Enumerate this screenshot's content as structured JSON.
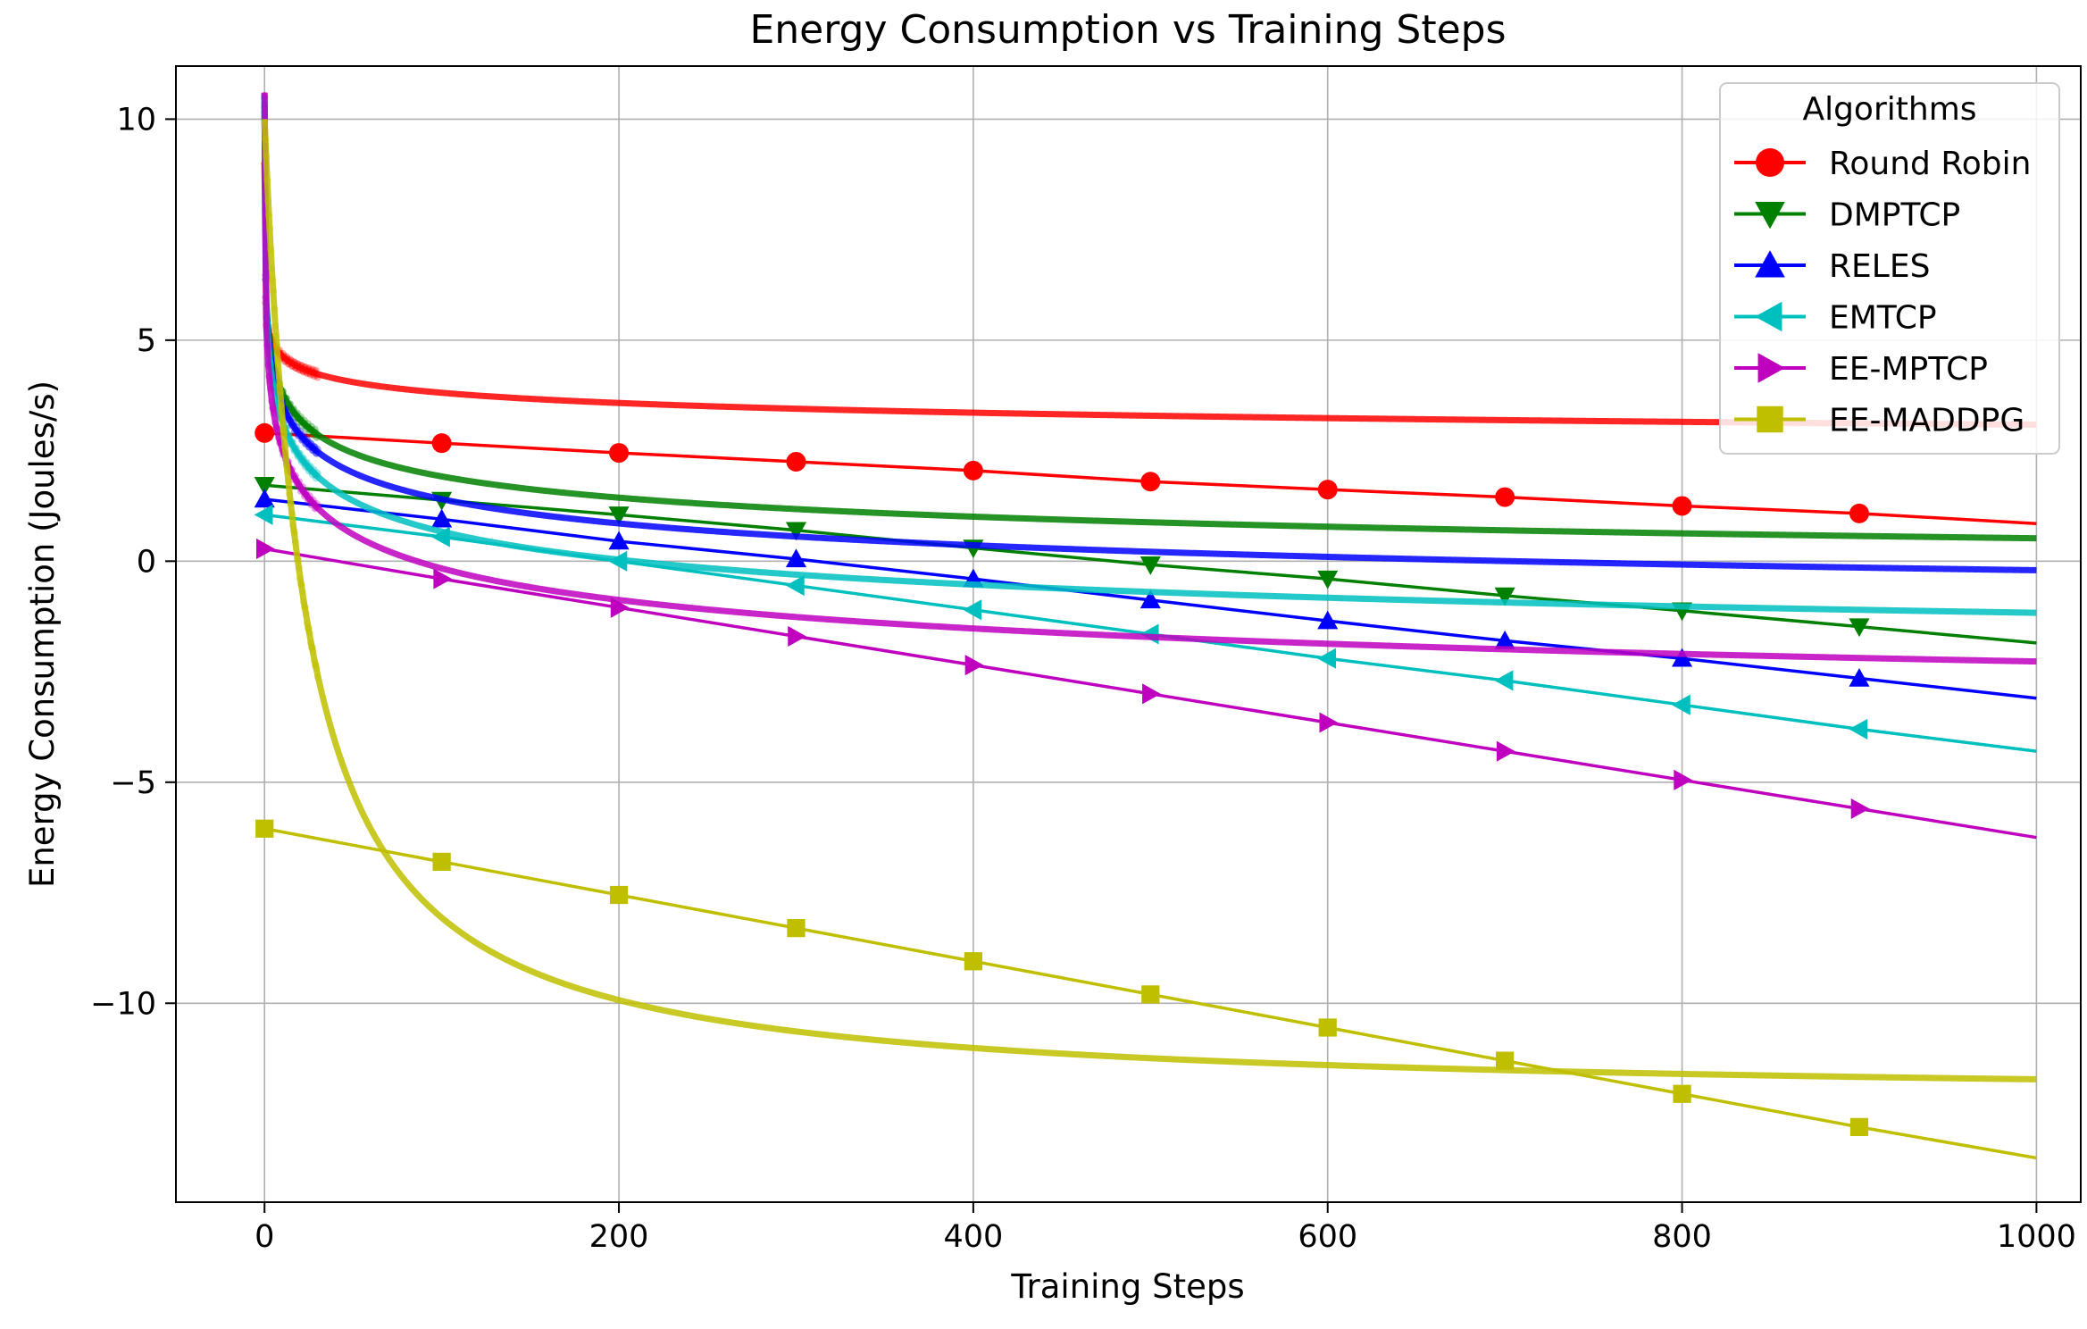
{
  "chart_data": {
    "type": "line",
    "title": "Energy Consumption vs Training Steps",
    "xlabel": "Training Steps",
    "ylabel": "Energy Consumption (Joules/s)",
    "xlim": [
      -50,
      1025
    ],
    "ylim": [
      -14.5,
      11.2
    ],
    "xticks": [
      0,
      200,
      400,
      600,
      800,
      1000
    ],
    "yticks": [
      -10,
      -5,
      0,
      5,
      10
    ],
    "xtick_labels": [
      "0",
      "200",
      "400",
      "600",
      "800",
      "1000"
    ],
    "ytick_labels": [
      "−10",
      "−5",
      "0",
      "5",
      "10"
    ],
    "grid": true,
    "legend": {
      "title": "Algorithms",
      "position": "top-right"
    },
    "trend_x": [
      0,
      100,
      200,
      300,
      400,
      500,
      600,
      700,
      800,
      900,
      1000
    ],
    "series": [
      {
        "name": "Round Robin",
        "color": "#ff0000",
        "marker": "circle",
        "trend": [
          2.9,
          2.67,
          2.45,
          2.25,
          2.05,
          1.8,
          1.62,
          1.45,
          1.25,
          1.08,
          0.85
        ],
        "fit": {
          "a": 9.0,
          "b": 3.28,
          "c": 5.2,
          "d": 1.12
        }
      },
      {
        "name": "DMPTCP",
        "color": "#008000",
        "marker": "triangle-down",
        "trend": [
          1.72,
          1.38,
          1.05,
          0.7,
          0.3,
          -0.08,
          -0.4,
          -0.78,
          -1.12,
          -1.48,
          -1.85
        ],
        "fit": {
          "a": 10.2,
          "b": 5.0,
          "c": 3.2,
          "d": -1.33
        }
      },
      {
        "name": "RELES",
        "color": "#0000ff",
        "marker": "triangle-up",
        "trend": [
          1.4,
          0.95,
          0.45,
          0.05,
          -0.4,
          -0.88,
          -1.35,
          -1.8,
          -2.2,
          -2.65,
          -3.1
        ],
        "fit": {
          "a": 10.4,
          "b": 6.2,
          "c": 3.2,
          "d": -2.37
        }
      },
      {
        "name": "EMTCP",
        "color": "#00bfbf",
        "marker": "triangle-left",
        "trend": [
          1.05,
          0.55,
          0.0,
          -0.55,
          -1.1,
          -1.65,
          -2.2,
          -2.7,
          -3.25,
          -3.8,
          -4.3
        ],
        "fit": {
          "a": 10.5,
          "b": 7.2,
          "c": 3.0,
          "d": -3.42
        }
      },
      {
        "name": "EE-MPTCP",
        "color": "#bf00bf",
        "marker": "triangle-right",
        "trend": [
          0.28,
          -0.4,
          -1.05,
          -1.7,
          -2.35,
          -3.0,
          -3.65,
          -4.3,
          -4.95,
          -5.6,
          -6.25
        ],
        "fit": {
          "a": 10.6,
          "b": 8.8,
          "c": 3.2,
          "d": -5.2
        }
      },
      {
        "name": "EE-MADDPG",
        "color": "#bfbf00",
        "marker": "square",
        "trend": [
          -6.05,
          -6.8,
          -7.55,
          -8.3,
          -9.05,
          -9.8,
          -10.55,
          -11.3,
          -12.05,
          -12.8,
          -13.5
        ],
        "fit": {
          "a": 10.0,
          "b": 23.0,
          "c": 1.0,
          "d": -12.22
        }
      }
    ]
  }
}
